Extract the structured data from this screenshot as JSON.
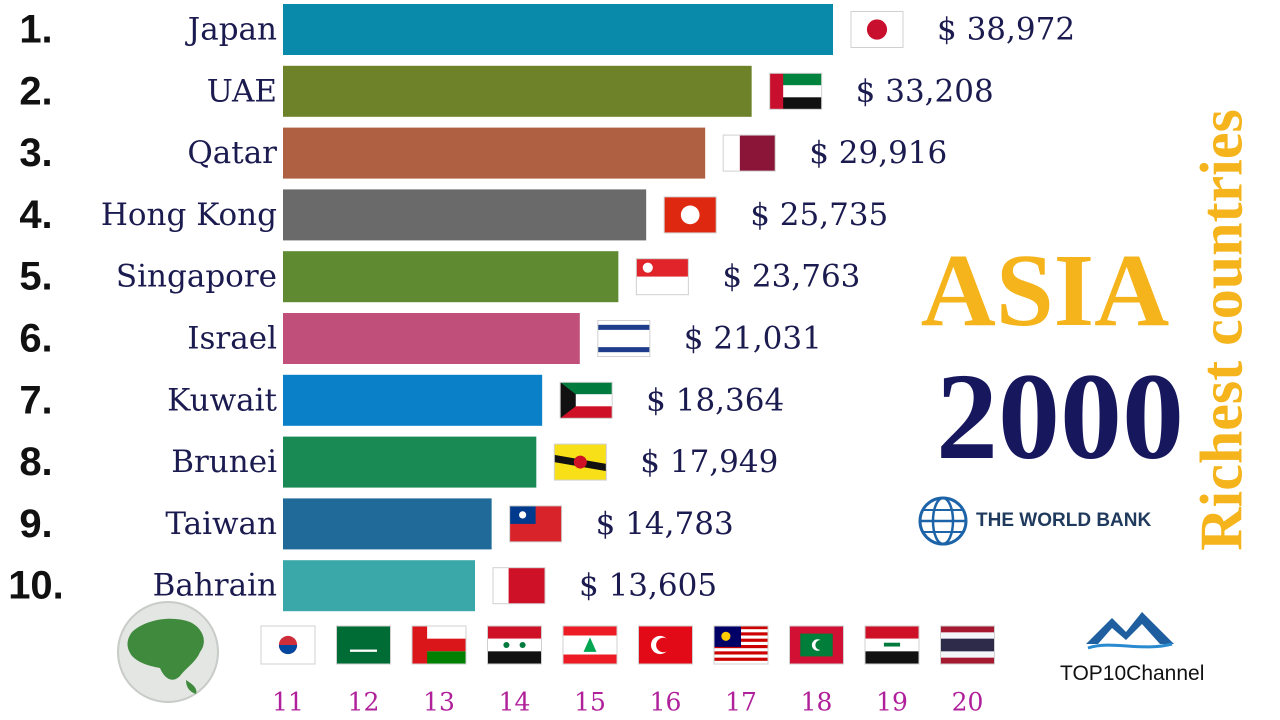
{
  "chart_data": {
    "type": "bar",
    "orientation": "horizontal",
    "ranks": [
      "1.",
      "2.",
      "3.",
      "4.",
      "5.",
      "6.",
      "7.",
      "8.",
      "9.",
      "10."
    ],
    "categories": [
      "Japan",
      "UAE",
      "Qatar",
      "Hong Kong",
      "Singapore",
      "Israel",
      "Kuwait",
      "Brunei",
      "Taiwan",
      "Bahrain"
    ],
    "values": [
      38972,
      33208,
      29916,
      25735,
      23763,
      21031,
      18364,
      17949,
      14783,
      13605
    ],
    "value_labels": [
      "$ 38,972",
      "$ 33,208",
      "$ 29,916",
      "$ 25,735",
      "$ 23,763",
      "$ 21,031",
      "$ 18,364",
      "$ 17,949",
      "$ 14,783",
      "$ 13,605"
    ],
    "bar_colors": [
      "#0a8aaa",
      "#6e8229",
      "#b06042",
      "#6a6a6a",
      "#5f8a32",
      "#c0507a",
      "#0a80c8",
      "#1a8a55",
      "#1f6a98",
      "#3aa8a8"
    ],
    "flag_icons": [
      "japan-flag-icon",
      "uae-flag-icon",
      "qatar-flag-icon",
      "hong-kong-flag-icon",
      "singapore-flag-icon",
      "israel-flag-icon",
      "kuwait-flag-icon",
      "brunei-flag-icon",
      "taiwan-flag-icon",
      "bahrain-flag-icon"
    ],
    "xlim": [
      0,
      39000
    ],
    "grid": false,
    "title": "ASIA",
    "legend": "none"
  },
  "upcoming": {
    "ranks": [
      "11",
      "12",
      "13",
      "14",
      "15",
      "16",
      "17",
      "18",
      "19",
      "20"
    ],
    "flag_icons": [
      "south-korea-flag-icon",
      "saudi-arabia-flag-icon",
      "oman-flag-icon",
      "syria-flag-icon",
      "lebanon-flag-icon",
      "turkey-flag-icon",
      "malaysia-flag-icon",
      "maldives-flag-icon",
      "iraq-flag-icon",
      "thailand-flag-icon"
    ],
    "rank_color": "#b0209a"
  },
  "globe_icon": "asia-globe-icon",
  "title": {
    "region": "ASIA",
    "year": "2000",
    "side": "Richest countries"
  },
  "source": {
    "name": "THE WORLD BANK",
    "icon": "world-bank-logo-icon"
  },
  "channel": {
    "name": "TOP10Channel",
    "icon": "mountain-logo-icon"
  },
  "colors": {
    "accent_gold": "#f5b41c",
    "navy": "#17175e",
    "label": "#1b1b50",
    "rank": "#111111"
  }
}
